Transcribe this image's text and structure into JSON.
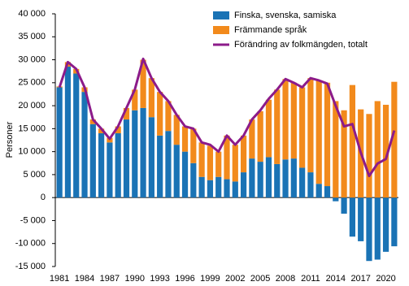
{
  "chart_data": {
    "type": "bar",
    "y_label": "Personer",
    "categories": [
      "1981",
      null,
      null,
      "1984",
      null,
      null,
      "1987",
      null,
      null,
      "1990",
      null,
      null,
      "1993",
      null,
      null,
      "1996",
      null,
      null,
      "1999",
      null,
      null,
      "2002",
      null,
      null,
      "2005",
      null,
      null,
      "2008",
      null,
      null,
      "2011",
      null,
      null,
      "2014",
      null,
      null,
      "2017",
      null,
      null,
      "2020",
      null
    ],
    "series": [
      {
        "name": "Finska, svenska, samiska",
        "type": "bar",
        "color": "#1a73b5",
        "values": [
          24000,
          28500,
          27000,
          23000,
          16000,
          14000,
          12000,
          14000,
          17000,
          19000,
          19500,
          17500,
          13500,
          14500,
          11500,
          10000,
          7500,
          4500,
          3800,
          4500,
          4000,
          3500,
          5500,
          8500,
          7800,
          8800,
          7300,
          8300,
          8500,
          6500,
          5500,
          3000,
          2500,
          -800,
          -3500,
          -8500,
          -9500,
          -13800,
          -13500,
          -11800,
          -10600
        ]
      },
      {
        "name": "Främmande språk",
        "type": "bar",
        "color": "#f28a1c",
        "values": [
          200,
          1000,
          1000,
          1000,
          1000,
          1000,
          1000,
          1500,
          2500,
          4500,
          10500,
          8500,
          9500,
          6500,
          6500,
          5500,
          7500,
          7500,
          7500,
          5500,
          9500,
          8000,
          8000,
          8500,
          11000,
          12500,
          16200,
          17500,
          16500,
          17500,
          20500,
          22500,
          22500,
          21000,
          19000,
          24500,
          19200,
          18200,
          21000,
          20200,
          25200
        ]
      },
      {
        "name": "Förändring av folkmängden, totalt",
        "type": "line",
        "color": "#8c1b8a",
        "values": [
          24000,
          29500,
          28000,
          24000,
          17000,
          15000,
          12800,
          15500,
          19500,
          23500,
          30200,
          26000,
          23000,
          21000,
          18000,
          15500,
          15000,
          12000,
          11500,
          10000,
          13500,
          11500,
          13500,
          17000,
          19000,
          21500,
          23500,
          25800,
          25000,
          24000,
          26000,
          25500,
          24800,
          20000,
          15500,
          16000,
          9800,
          4700,
          7400,
          8400,
          14600
        ]
      }
    ],
    "ylim": [
      -15000,
      40000
    ],
    "yticks": [
      {
        "value": -15000,
        "label": "-15 000"
      },
      {
        "value": -10000,
        "label": "-10 000"
      },
      {
        "value": -5000,
        "label": "-5 000"
      },
      0,
      {
        "value": 5000,
        "label": "5 000"
      },
      {
        "value": 10000,
        "label": "10 000"
      },
      {
        "value": 15000,
        "label": "15 000"
      },
      {
        "value": 20000,
        "label": "20 000"
      },
      {
        "value": 25000,
        "label": "25 000"
      },
      {
        "value": 30000,
        "label": "30 000"
      },
      {
        "value": 35000,
        "label": "35 000"
      },
      {
        "value": 40000,
        "label": "40 000"
      }
    ],
    "legend": "top-right"
  }
}
